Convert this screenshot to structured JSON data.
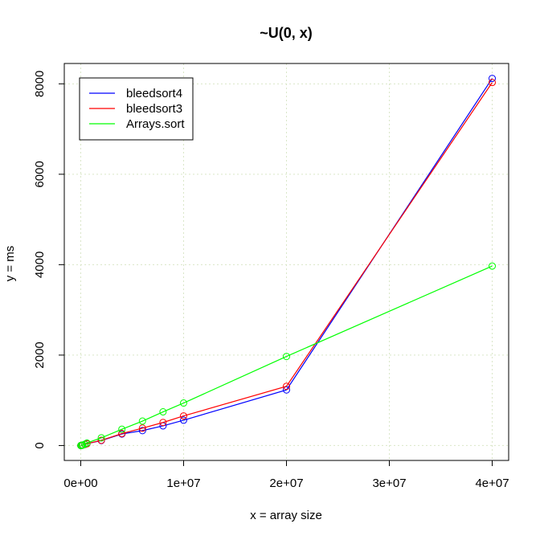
{
  "chart_data": {
    "type": "line",
    "title": "~U(0, x)",
    "xlabel": "x = array size",
    "ylabel": "y = ms",
    "xlim": [
      -1600000,
      41600000
    ],
    "ylim": [
      -330,
      8450
    ],
    "xticks": [
      {
        "value": 0,
        "label": "0e+00"
      },
      {
        "value": 10000000,
        "label": "1e+07"
      },
      {
        "value": 20000000,
        "label": "2e+07"
      },
      {
        "value": 30000000,
        "label": "3e+07"
      },
      {
        "value": 40000000,
        "label": "4e+07"
      }
    ],
    "yticks": [
      {
        "value": 0,
        "label": "0"
      },
      {
        "value": 2000,
        "label": "2000"
      },
      {
        "value": 4000,
        "label": "4000"
      },
      {
        "value": 6000,
        "label": "6000"
      },
      {
        "value": 8000,
        "label": "8000"
      }
    ],
    "grid": true,
    "grid_color": "#d9e6c8",
    "legend_position": "top-left",
    "x": [
      10000,
      50000,
      100000,
      200000,
      400000,
      600000,
      2000000,
      4000000,
      6000000,
      8000000,
      10000000,
      20000000,
      40000000
    ],
    "series": [
      {
        "name": "bleedsort4",
        "color": "#0000ff",
        "marker": "circle",
        "values": [
          0,
          2,
          5,
          10,
          25,
          40,
          110,
          255,
          330,
          435,
          560,
          1230,
          8120
        ]
      },
      {
        "name": "bleedsort3",
        "color": "#ff0000",
        "marker": "circle",
        "values": [
          0,
          2,
          5,
          10,
          25,
          40,
          115,
          265,
          385,
          510,
          655,
          1310,
          8030
        ]
      },
      {
        "name": "Arrays.sort",
        "color": "#00ff00",
        "marker": "circle",
        "values": [
          0,
          2,
          5,
          12,
          30,
          55,
          170,
          360,
          540,
          745,
          940,
          1970,
          3970
        ]
      }
    ]
  }
}
